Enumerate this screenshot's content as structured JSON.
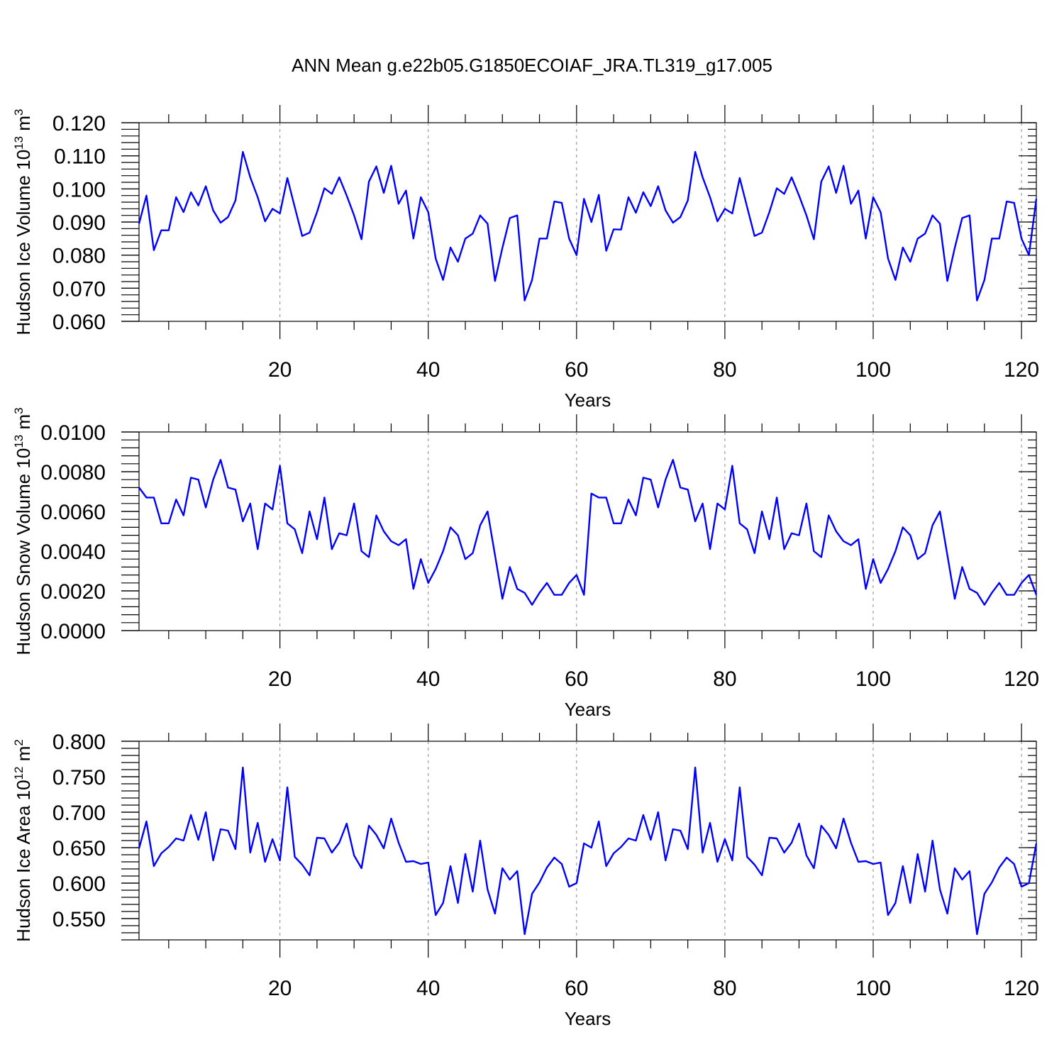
{
  "title": "ANN Mean g.e22b05.G1850ECOIAF_JRA.TL319_g17.005",
  "line_color": "#0000ff",
  "chart_data": [
    {
      "type": "line",
      "ylabel_main": "Hudson Ice Volume 10",
      "ylabel_exp": "13",
      "ylabel_unit": " m",
      "ylabel_unit_exp": "3",
      "xlabel": "Years",
      "xlim": [
        1,
        122
      ],
      "ylim": [
        0.06,
        0.12
      ],
      "yticks": [
        0.06,
        0.07,
        0.08,
        0.09,
        0.1,
        0.11,
        0.12
      ],
      "ytick_labels": [
        "0.060",
        "0.070",
        "0.080",
        "0.090",
        "0.100",
        "0.110",
        "0.120"
      ],
      "xticks": [
        20,
        40,
        60,
        80,
        100,
        120
      ],
      "xtick_labels": [
        "20",
        "40",
        "60",
        "80",
        "100",
        "120"
      ],
      "x_start": 1,
      "values": [
        0.0895,
        0.098,
        0.0815,
        0.0875,
        0.0875,
        0.0975,
        0.093,
        0.099,
        0.095,
        0.1008,
        0.0935,
        0.0898,
        0.0915,
        0.0965,
        0.1112,
        0.1035,
        0.0975,
        0.0902,
        0.094,
        0.0926,
        0.1033,
        0.0945,
        0.0858,
        0.0868,
        0.093,
        0.1002,
        0.0985,
        0.1035,
        0.098,
        0.092,
        0.0848,
        0.1022,
        0.1068,
        0.0988,
        0.107,
        0.0955,
        0.0995,
        0.085,
        0.0975,
        0.093,
        0.079,
        0.0725,
        0.0823,
        0.078,
        0.085,
        0.0865,
        0.092,
        0.0895,
        0.0722,
        0.0822,
        0.0912,
        0.092,
        0.0663,
        0.0725,
        0.085,
        0.085,
        0.0962,
        0.0958,
        0.085,
        0.08,
        0.097,
        0.09,
        0.0982,
        0.0813,
        0.0878,
        0.0877,
        0.0975,
        0.0928,
        0.099,
        0.0948,
        0.1008,
        0.0935,
        0.0898,
        0.0915,
        0.0965,
        0.1112,
        0.1035,
        0.0975,
        0.0902,
        0.094,
        0.0926,
        0.1033,
        0.0945,
        0.0858,
        0.0868,
        0.093,
        0.1002,
        0.0985,
        0.1035,
        0.098,
        0.092,
        0.0848,
        0.1022,
        0.1068,
        0.0988,
        0.107,
        0.0955,
        0.0995,
        0.085,
        0.0975,
        0.093,
        0.079,
        0.0725,
        0.0823,
        0.078,
        0.085,
        0.0865,
        0.092,
        0.0895,
        0.0722,
        0.0822,
        0.0912,
        0.092,
        0.0663,
        0.0725,
        0.085,
        0.085,
        0.0962,
        0.0958,
        0.085,
        0.08,
        0.097
      ]
    },
    {
      "type": "line",
      "ylabel_main": "Hudson Snow Volume 10",
      "ylabel_exp": "13",
      "ylabel_unit": " m",
      "ylabel_unit_exp": "3",
      "xlabel": "Years",
      "xlim": [
        1,
        122
      ],
      "ylim": [
        0.0,
        0.01
      ],
      "yticks": [
        0.0,
        0.002,
        0.004,
        0.006,
        0.008,
        0.01
      ],
      "ytick_labels": [
        "0.0000",
        "0.0020",
        "0.0040",
        "0.0060",
        "0.0080",
        "0.0100"
      ],
      "xticks": [
        20,
        40,
        60,
        80,
        100,
        120
      ],
      "xtick_labels": [
        "20",
        "40",
        "60",
        "80",
        "100",
        "120"
      ],
      "x_start": 1,
      "values": [
        0.0072,
        0.0067,
        0.0067,
        0.0054,
        0.0054,
        0.0066,
        0.0058,
        0.0077,
        0.0076,
        0.0062,
        0.0076,
        0.0086,
        0.0072,
        0.0071,
        0.0055,
        0.0064,
        0.0041,
        0.0064,
        0.0061,
        0.0083,
        0.0054,
        0.0051,
        0.0039,
        0.006,
        0.0046,
        0.0067,
        0.0041,
        0.0049,
        0.0048,
        0.0064,
        0.004,
        0.0037,
        0.0058,
        0.005,
        0.0045,
        0.0043,
        0.0046,
        0.0021,
        0.0036,
        0.0024,
        0.0031,
        0.004,
        0.0052,
        0.0048,
        0.0036,
        0.0039,
        0.0053,
        0.006,
        0.0038,
        0.0016,
        0.0032,
        0.0021,
        0.0019,
        0.0013,
        0.0019,
        0.0024,
        0.0018,
        0.0018,
        0.0024,
        0.0028,
        0.0018,
        0.0069,
        0.0067,
        0.0067,
        0.0054,
        0.0054,
        0.0066,
        0.0058,
        0.0077,
        0.0076,
        0.0062,
        0.0076,
        0.0086,
        0.0072,
        0.0071,
        0.0055,
        0.0064,
        0.0041,
        0.0064,
        0.0061,
        0.0083,
        0.0054,
        0.0051,
        0.0039,
        0.006,
        0.0046,
        0.0067,
        0.0041,
        0.0049,
        0.0048,
        0.0064,
        0.004,
        0.0037,
        0.0058,
        0.005,
        0.0045,
        0.0043,
        0.0046,
        0.0021,
        0.0036,
        0.0024,
        0.0031,
        0.004,
        0.0052,
        0.0048,
        0.0036,
        0.0039,
        0.0053,
        0.006,
        0.0038,
        0.0016,
        0.0032,
        0.0021,
        0.0019,
        0.0013,
        0.0019,
        0.0024,
        0.0018,
        0.0018,
        0.0024,
        0.0028,
        0.0018
      ]
    },
    {
      "type": "line",
      "ylabel_main": "Hudson Ice Area 10",
      "ylabel_exp": "12",
      "ylabel_unit": " m",
      "ylabel_unit_exp": "2",
      "xlabel": "Years",
      "xlim": [
        1,
        122
      ],
      "ylim": [
        0.52,
        0.8
      ],
      "yticks": [
        0.55,
        0.6,
        0.65,
        0.7,
        0.75,
        0.8
      ],
      "ytick_labels": [
        "0.550",
        "0.600",
        "0.650",
        "0.700",
        "0.750",
        "0.800"
      ],
      "xticks": [
        20,
        40,
        60,
        80,
        100,
        120
      ],
      "xtick_labels": [
        "20",
        "40",
        "60",
        "80",
        "100",
        "120"
      ],
      "x_start": 1,
      "values": [
        0.649,
        0.687,
        0.624,
        0.642,
        0.651,
        0.663,
        0.66,
        0.696,
        0.661,
        0.7,
        0.632,
        0.676,
        0.674,
        0.648,
        0.763,
        0.643,
        0.685,
        0.63,
        0.662,
        0.632,
        0.735,
        0.637,
        0.626,
        0.611,
        0.664,
        0.663,
        0.643,
        0.657,
        0.684,
        0.639,
        0.621,
        0.681,
        0.668,
        0.649,
        0.691,
        0.657,
        0.63,
        0.631,
        0.627,
        0.629,
        0.555,
        0.572,
        0.624,
        0.572,
        0.641,
        0.588,
        0.66,
        0.591,
        0.557,
        0.621,
        0.605,
        0.617,
        0.528,
        0.585,
        0.601,
        0.622,
        0.636,
        0.627,
        0.595,
        0.6,
        0.656,
        0.65,
        0.687,
        0.624,
        0.642,
        0.651,
        0.663,
        0.66,
        0.696,
        0.661,
        0.7,
        0.632,
        0.676,
        0.674,
        0.648,
        0.763,
        0.643,
        0.685,
        0.63,
        0.662,
        0.632,
        0.735,
        0.637,
        0.626,
        0.611,
        0.664,
        0.663,
        0.643,
        0.657,
        0.684,
        0.639,
        0.621,
        0.681,
        0.668,
        0.649,
        0.691,
        0.657,
        0.63,
        0.631,
        0.627,
        0.629,
        0.555,
        0.572,
        0.624,
        0.572,
        0.641,
        0.588,
        0.66,
        0.591,
        0.557,
        0.621,
        0.605,
        0.617,
        0.528,
        0.585,
        0.601,
        0.622,
        0.636,
        0.627,
        0.595,
        0.6,
        0.656
      ]
    }
  ]
}
